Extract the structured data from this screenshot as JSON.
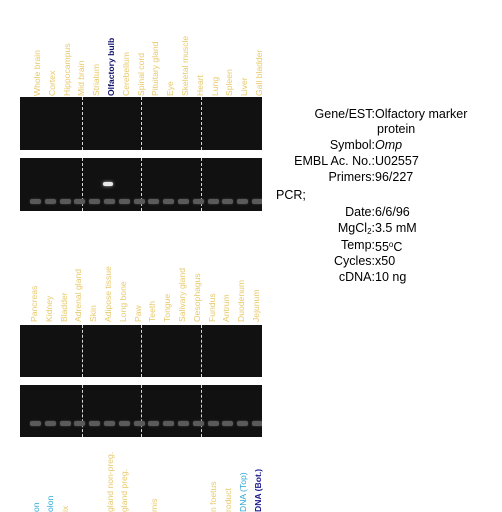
{
  "panel1": {
    "lanes": [
      {
        "label": "Whole brain",
        "style": "normal"
      },
      {
        "label": "Cortex",
        "style": "normal"
      },
      {
        "label": "Hippocampus",
        "style": "normal"
      },
      {
        "label": "Mid brain",
        "style": "normal"
      },
      {
        "label": "Striatum",
        "style": "normal"
      },
      {
        "label": "Olfactory bulb",
        "style": "highlight"
      },
      {
        "label": "Cerebellum",
        "style": "normal"
      },
      {
        "label": "Spinal cord",
        "style": "normal"
      },
      {
        "label": "Pituitary gland",
        "style": "normal"
      },
      {
        "label": "Eye",
        "style": "normal"
      },
      {
        "label": "Skeletal muscle",
        "style": "normal"
      },
      {
        "label": "Heart",
        "style": "normal"
      },
      {
        "label": "Lung",
        "style": "normal"
      },
      {
        "label": "Spleen",
        "style": "normal"
      },
      {
        "label": "Liver",
        "style": "normal"
      },
      {
        "label": "Gall bladder",
        "style": "normal"
      }
    ]
  },
  "panel2": {
    "lanes": [
      {
        "label": "Pancreas",
        "style": "normal"
      },
      {
        "label": "Kidney",
        "style": "normal"
      },
      {
        "label": "Bladder",
        "style": "normal"
      },
      {
        "label": "Adrenal gland",
        "style": "normal"
      },
      {
        "label": "Skin",
        "style": "normal"
      },
      {
        "label": "Adipose tissue",
        "style": "normal"
      },
      {
        "label": "Long bone",
        "style": "normal"
      },
      {
        "label": "Paw",
        "style": "normal"
      },
      {
        "label": "Teeth",
        "style": "normal"
      },
      {
        "label": "Tongue",
        "style": "normal"
      },
      {
        "label": "Salivary gland",
        "style": "normal"
      },
      {
        "label": "Oesophagus",
        "style": "normal"
      },
      {
        "label": "Fundus",
        "style": "normal"
      },
      {
        "label": "Antrum",
        "style": "normal"
      },
      {
        "label": "Duodenum",
        "style": "normal"
      },
      {
        "label": "Jejunum",
        "style": "normal"
      }
    ]
  },
  "panel3": {
    "lanes": [
      {
        "label": "",
        "style": "normal"
      },
      {
        "label": "",
        "style": "normal"
      },
      {
        "label": "on",
        "style": "cyan"
      },
      {
        "label": "olon",
        "style": "cyan"
      },
      {
        "label": "ix",
        "style": "normal"
      },
      {
        "label": "",
        "style": "normal"
      },
      {
        "label": "",
        "style": "normal"
      },
      {
        "label": "gland non-preg.",
        "style": "normal"
      },
      {
        "label": "gland preg.",
        "style": "normal"
      },
      {
        "label": "",
        "style": "normal"
      },
      {
        "label": "mis",
        "style": "normal"
      },
      {
        "label": "",
        "style": "normal"
      },
      {
        "label": "",
        "style": "normal"
      },
      {
        "label": "",
        "style": "normal"
      },
      {
        "label": "n foetus",
        "style": "normal"
      },
      {
        "label": "roduct",
        "style": "normal"
      },
      {
        "label": "DNA (Top)",
        "style": "cyan"
      },
      {
        "label": "DNA (Bot.)",
        "style": "navy"
      }
    ]
  },
  "info": {
    "gene_key": "Gene/EST:",
    "gene_val1": "Olfactory marker",
    "gene_val2": "protein",
    "symbol_key": "Symbol:",
    "symbol_val": "Omp",
    "embl_key": "EMBL Ac. No.:",
    "embl_val": "U02557",
    "primers_key": "Primers:",
    "primers_val": "96/227",
    "pcr_key": "PCR;",
    "date_key": "Date:",
    "date_val": "6/6/96",
    "mgcl_key_pre": "MgCl",
    "mgcl_sub": "2",
    "mgcl_key_post": ":",
    "mgcl_val": "3.5 mM",
    "temp_key": "Temp:",
    "temp_val_num": "55",
    "temp_val_sup": "o",
    "temp_val_unit": "C",
    "cycles_key": "Cycles:",
    "cycles_val": "x50",
    "cdna_key": "cDNA:",
    "cdna_val": "10 ng"
  }
}
